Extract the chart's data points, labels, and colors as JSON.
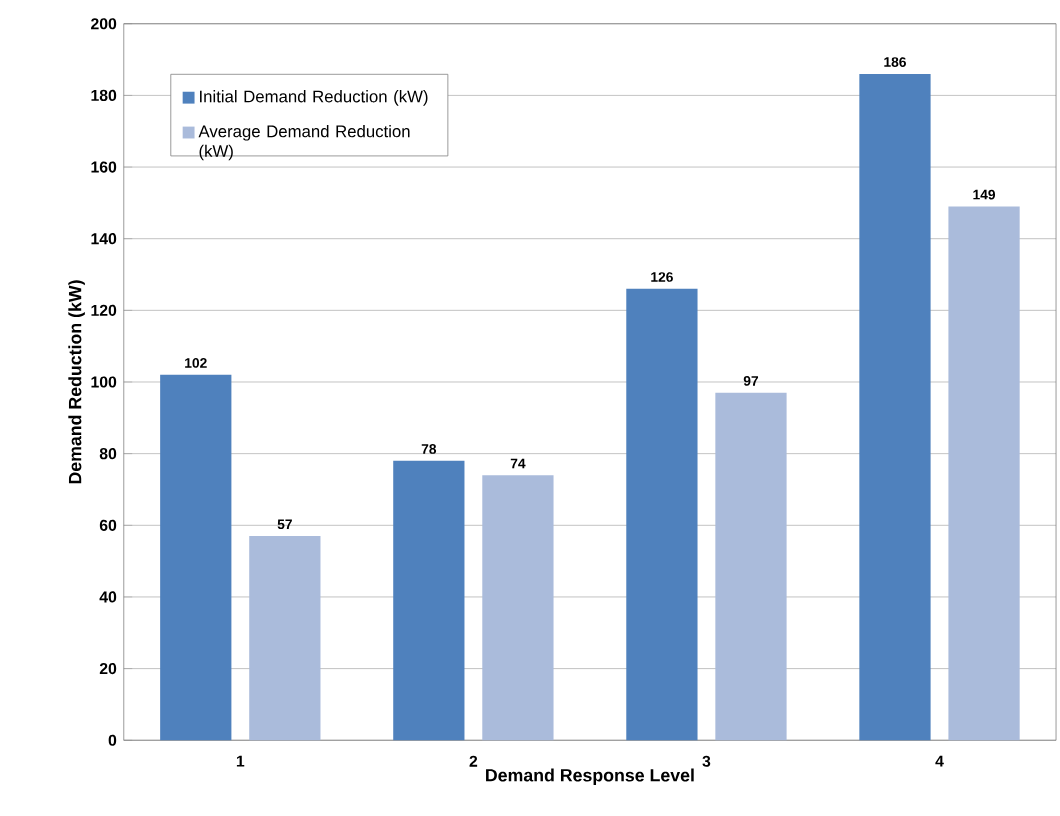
{
  "chart_data": {
    "type": "bar",
    "xlabel": "Demand Response Level",
    "ylabel": "Demand Reduction (kW)",
    "categories": [
      "1",
      "2",
      "3",
      "4"
    ],
    "series": [
      {
        "name": "Initial Demand Reduction (kW)",
        "color": "#4f81bd",
        "values": [
          102,
          78,
          126,
          186
        ]
      },
      {
        "name": "Average Demand Reduction (kW)",
        "color": "#aabbdb",
        "values": [
          57,
          74,
          97,
          149
        ]
      }
    ],
    "ylim": [
      0,
      200
    ],
    "yticks": [
      0,
      20,
      40,
      60,
      80,
      100,
      120,
      140,
      160,
      180,
      200
    ],
    "grid": "y",
    "legend": "top left",
    "data_labels": true
  }
}
